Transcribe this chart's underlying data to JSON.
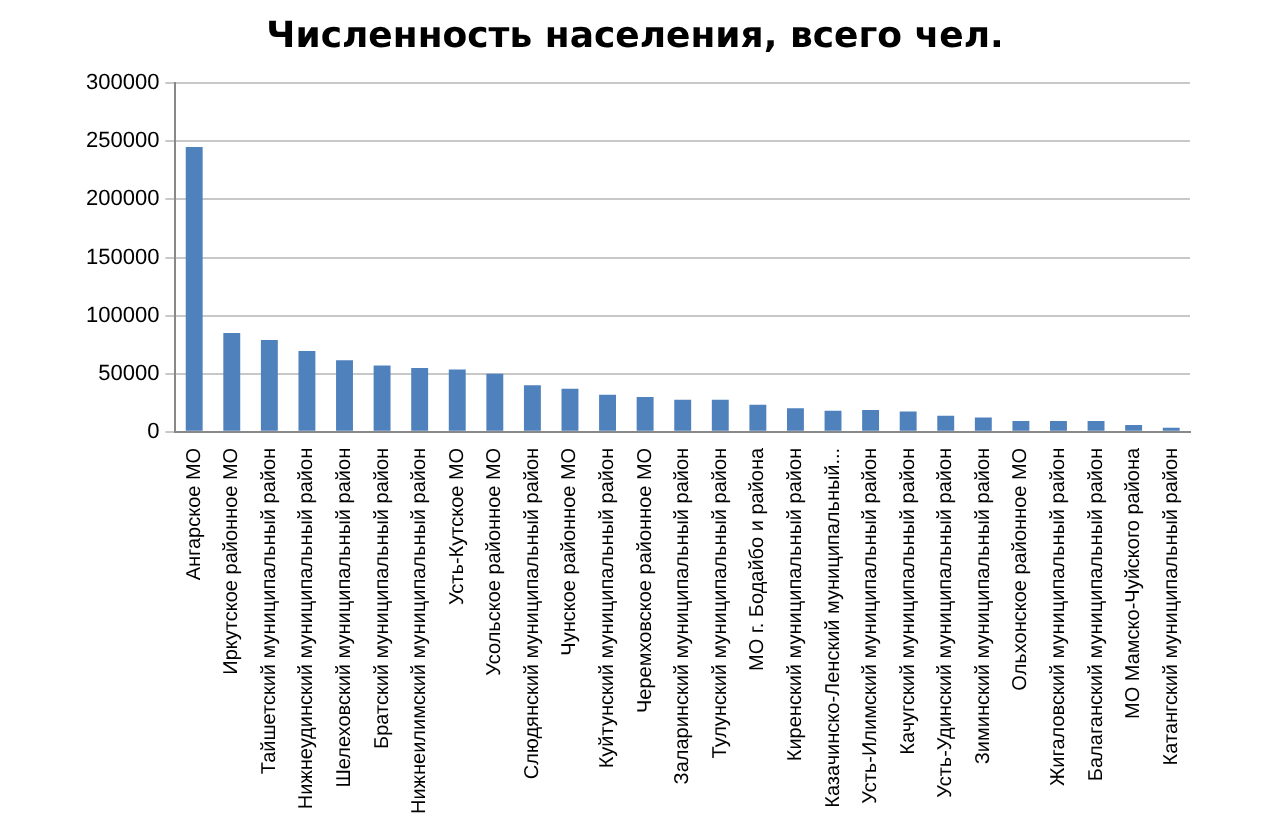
{
  "chart_data": {
    "type": "bar",
    "title": "Численность населения, всего чел.",
    "categories": [
      "Ангарское МО",
      "Иркутское районное МО",
      "Тайшетский муниципальный район",
      "Нижнеудинский муниципальный район",
      "Шелеховский муниципальный район",
      "Братский муниципальный район",
      "Нижнеилимский муниципальный район",
      "Усть-Кутское МО",
      "Усольское районное МО",
      "Слюдянский муниципальный район",
      "Чунское районное МО",
      "Куйтунский муниципальный район",
      "Черемховское районное МО",
      "Заларинский муниципальный район",
      "Тулунский муниципальный район",
      "МО г. Бодайбо и района",
      "Киренский муниципальный район",
      "Казачинско-Ленский муниципальный...",
      "Усть-Илимский муниципальный район",
      "Качугский муниципальный район",
      "Усть-Удинский муниципальный район",
      "Зиминский муниципальный район",
      "Ольхонское районное МО",
      "Жигаловский муниципальный район",
      "Балаганский муниципальный район",
      "МО Мамско-Чуйского района",
      "Катангский муниципальный район"
    ],
    "values": [
      245000,
      85000,
      79000,
      69500,
      61600,
      57000,
      55000,
      53600,
      50000,
      40000,
      37000,
      32000,
      30000,
      27500,
      27500,
      23200,
      20300,
      18100,
      18800,
      17400,
      13800,
      12300,
      9400,
      9400,
      9400,
      5800,
      3600
    ],
    "color": "#4f81bd",
    "ylim": [
      0,
      300000
    ],
    "yticks": [
      0,
      50000,
      100000,
      150000,
      200000,
      250000,
      300000
    ],
    "grid": "y"
  }
}
